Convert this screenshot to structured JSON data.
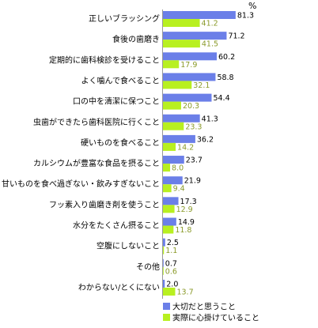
{
  "chart_data": {
    "type": "bar",
    "orientation": "horizontal",
    "unit": "%",
    "categories": [
      "正しいブラッシング",
      "食後の歯磨き",
      "定期的に歯科検診を受けること",
      "よく噛んで食べること",
      "口の中を清潔に保つこと",
      "虫歯ができたら歯科医院に行くこと",
      "硬いものを食べること",
      "カルシウムが豊富な食品を摂ること",
      "甘いものを食べ過ぎない・飲みすぎないこと",
      "フッ素入り歯磨き剤を使うこと",
      "水分をたくさん摂ること",
      "空腹にしないこと",
      "その他",
      "わからない/とくにない"
    ],
    "series": [
      {
        "name": "大切だと思うこと",
        "color": "#6b7fe8",
        "label_color": "#000000",
        "values": [
          81.3,
          71.2,
          60.2,
          58.8,
          54.4,
          41.3,
          36.2,
          23.7,
          21.9,
          17.3,
          14.9,
          2.5,
          0.7,
          2.0
        ]
      },
      {
        "name": "実際に心掛けていること",
        "color": "#b8f020",
        "label_color": "#8a9a2a",
        "values": [
          41.2,
          41.5,
          17.9,
          32.1,
          20.3,
          23.3,
          14.2,
          8.0,
          9.4,
          12.9,
          11.8,
          1.1,
          0.6,
          13.7
        ]
      }
    ],
    "xlim": [
      0,
      100
    ],
    "grid": false,
    "legend": "bottom-right"
  }
}
